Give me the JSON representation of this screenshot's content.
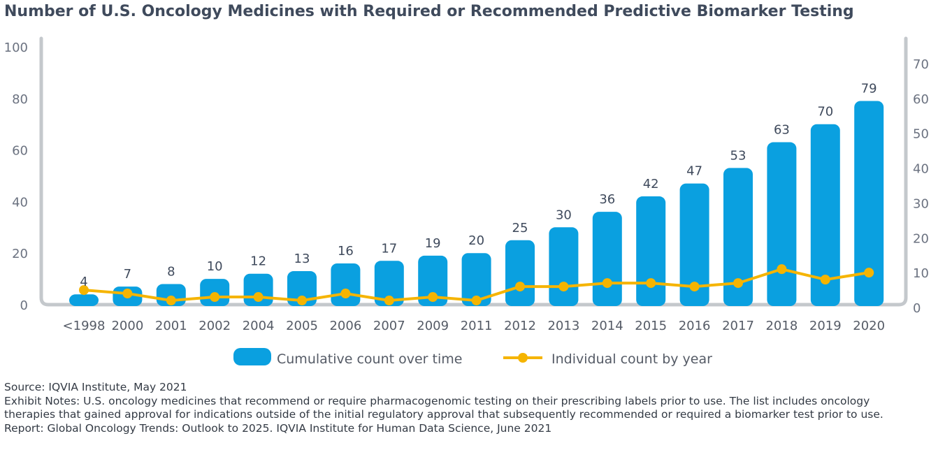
{
  "chart_data": {
    "type": "bar",
    "title": "Number of U.S. Oncology Medicines with Required or Recommended Predictive Biomarker Testing",
    "categories": [
      "<1998",
      "2000",
      "2001",
      "2002",
      "2004",
      "2005",
      "2006",
      "2007",
      "2009",
      "2011",
      "2012",
      "2013",
      "2014",
      "2015",
      "2016",
      "2017",
      "2018",
      "2019",
      "2020"
    ],
    "series": [
      {
        "name": "Cumulative count over time",
        "type": "bar",
        "axis": "left",
        "color": "#0aa0e0",
        "values": [
          4,
          7,
          8,
          10,
          12,
          13,
          16,
          17,
          19,
          20,
          25,
          30,
          36,
          42,
          47,
          53,
          63,
          70,
          79
        ]
      },
      {
        "name": "Individual count by year",
        "type": "line",
        "axis": "right",
        "color": "#f5b400",
        "values": [
          5,
          4,
          2,
          3,
          3,
          2,
          4,
          2,
          3,
          2,
          6,
          6,
          7,
          7,
          6,
          7,
          11,
          8,
          10
        ]
      }
    ],
    "ylim": [
      0,
      100
    ],
    "y_ticks": [
      0,
      20,
      40,
      60,
      80,
      100
    ],
    "y2lim": [
      0,
      75
    ],
    "y2_ticks": [
      0,
      10,
      20,
      30,
      40,
      50,
      60,
      70
    ],
    "legend_position": "bottom"
  },
  "notes": {
    "source": "Source: IQVIA Institute, May 2021",
    "exhibit_line1": "Exhibit Notes: U.S. oncology medicines that recommend or require pharmacogenomic testing on their prescribing labels prior to use. The list includes oncology",
    "exhibit_line2": "therapies that gained approval for indications outside of the initial regulatory approval that subsequently recommended or required a biomarker test prior to use.",
    "report": "Report: Global Oncology Trends: Outlook to 2025. IQVIA Institute for Human Data Science, June 2021"
  }
}
